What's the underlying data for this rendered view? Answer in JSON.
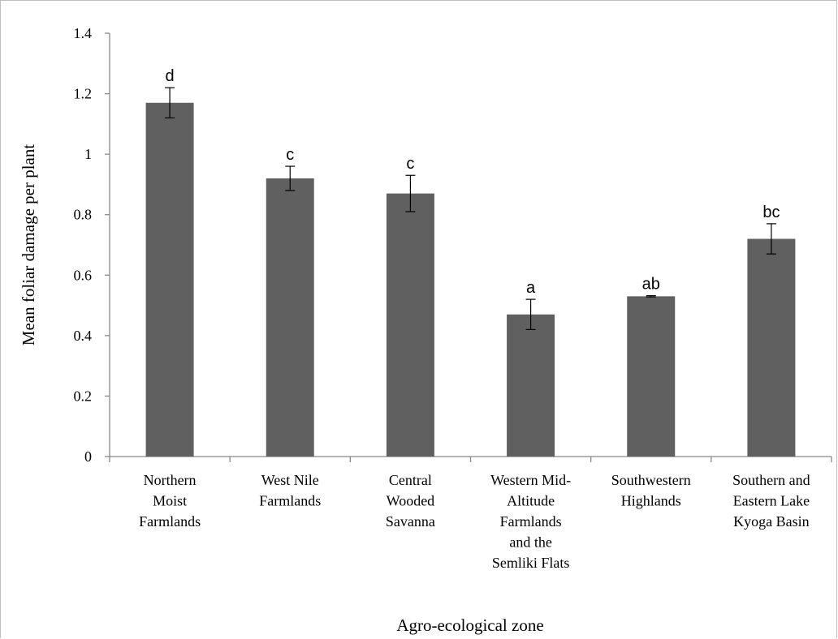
{
  "chart_data": {
    "type": "bar",
    "title": "",
    "xlabel": "Agro-ecological zone",
    "ylabel": "Mean foliar damage per plant",
    "ylim": [
      0,
      1.4
    ],
    "yticks": [
      "0",
      "0.2",
      "0.4",
      "0.6",
      "0.8",
      "1",
      "1.2",
      "1.4"
    ],
    "grid": false,
    "legend": "none",
    "bar_color": "#606060",
    "categories": [
      [
        "Northern",
        "Moist",
        "Farmlands"
      ],
      [
        "West Nile",
        "Farmlands"
      ],
      [
        "Central",
        "Wooded",
        "Savanna"
      ],
      [
        "Western Mid-",
        "Altitude",
        "Farmlands",
        "and the",
        "Semliki Flats"
      ],
      [
        "Southwestern",
        "Highlands"
      ],
      [
        "Southern and",
        "Eastern Lake",
        "Kyoga Basin"
      ]
    ],
    "values": [
      1.17,
      0.92,
      0.87,
      0.47,
      0.53,
      0.72
    ],
    "errors": [
      0.05,
      0.04,
      0.06,
      0.05,
      0.002,
      0.05
    ],
    "significance_letters": [
      "d",
      "c",
      "c",
      "a",
      "ab",
      "bc"
    ]
  }
}
